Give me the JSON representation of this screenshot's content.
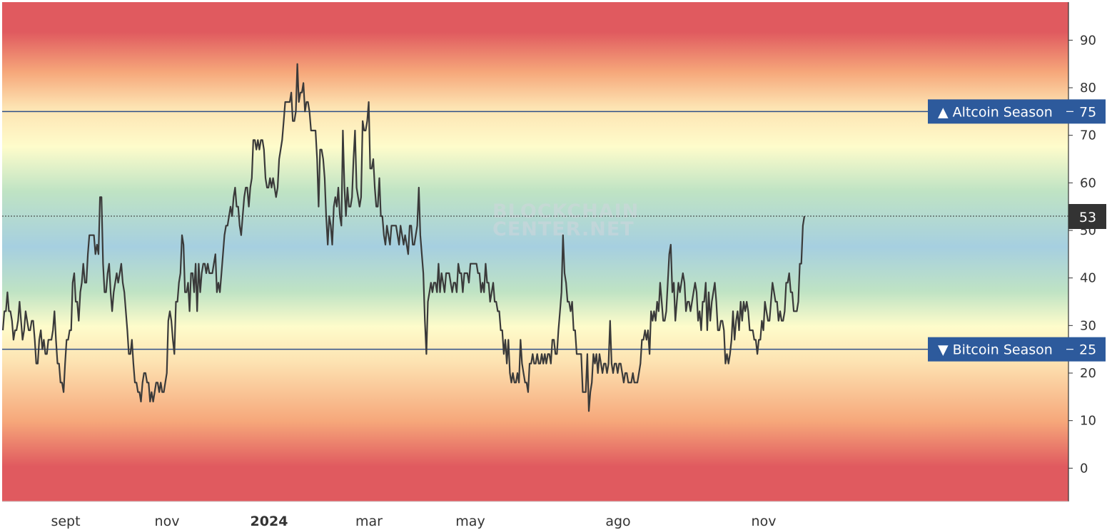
{
  "watermark": {
    "line1": "BLOCKCHAIN",
    "line2": "CENTER.NET"
  },
  "colors": {
    "line": "#3a3a3a",
    "threshold_line": "#2f4f88",
    "label_bg": "#2d5a9c",
    "current_bg": "#333333",
    "band_red": "#e05a5f",
    "band_orange": "#f6a77a",
    "band_peach": "#fde3b2",
    "band_yellow": "#fefccb",
    "band_green": "#bfe3c4",
    "band_blue": "#a6cfe0"
  },
  "chart_data": {
    "type": "line",
    "x_axis_labels": [
      "sept",
      "nov",
      "2024",
      "mar",
      "may",
      "ago",
      "nov"
    ],
    "y_ticks": [
      0,
      10,
      20,
      30,
      40,
      50,
      60,
      70,
      80,
      90
    ],
    "ylim": [
      -7,
      98
    ],
    "grid": false,
    "series": [
      {
        "values": [
          29,
          33,
          33,
          37,
          33,
          33,
          31,
          27,
          29,
          29,
          31,
          35,
          31,
          27,
          29,
          33,
          31,
          29,
          29,
          31,
          31,
          27,
          22,
          22,
          27,
          29,
          25,
          27,
          24,
          24,
          27,
          27,
          27,
          29,
          33,
          27,
          22,
          22,
          18,
          18,
          16,
          22,
          27,
          27,
          29,
          29,
          39,
          41,
          35,
          35,
          31,
          37,
          39,
          43,
          39,
          39,
          45,
          49,
          49,
          49,
          49,
          45,
          47,
          45,
          57,
          57,
          43,
          37,
          37,
          41,
          43,
          37,
          33,
          37,
          39,
          41,
          39,
          41,
          43,
          39,
          37,
          33,
          29,
          24,
          24,
          27,
          22,
          18,
          18,
          16,
          16,
          14,
          18,
          20,
          20,
          18,
          18,
          14,
          16,
          14,
          16,
          18,
          18,
          16,
          18,
          16,
          16,
          18,
          20,
          31,
          33,
          31,
          27,
          24,
          35,
          35,
          39,
          41,
          49,
          47,
          37,
          37,
          39,
          33,
          41,
          41,
          37,
          43,
          33,
          43,
          37,
          41,
          43,
          43,
          41,
          43,
          41,
          41,
          41,
          43,
          45,
          37,
          39,
          37,
          41,
          45,
          49,
          51,
          51,
          53,
          55,
          53,
          57,
          59,
          55,
          55,
          51,
          49,
          53,
          57,
          59,
          59,
          55,
          59,
          61,
          69,
          69,
          67,
          69,
          67,
          69,
          69,
          67,
          61,
          59,
          59,
          61,
          59,
          61,
          59,
          57,
          59,
          65,
          67,
          69,
          73,
          77,
          77,
          77,
          77,
          79,
          73,
          73,
          75,
          85,
          77,
          79,
          79,
          81,
          75,
          77,
          77,
          75,
          71,
          71,
          71,
          71,
          65,
          55,
          67,
          67,
          65,
          61,
          53,
          47,
          53,
          51,
          47,
          55,
          57,
          55,
          59,
          53,
          51,
          71,
          59,
          53,
          59,
          55,
          55,
          57,
          65,
          71,
          59,
          57,
          55,
          57,
          73,
          71,
          71,
          73,
          77,
          63,
          63,
          65,
          59,
          55,
          55,
          61,
          53,
          53,
          49,
          47,
          51,
          49,
          47,
          51,
          51,
          51,
          51,
          49,
          47,
          51,
          49,
          47,
          49,
          47,
          45,
          51,
          51,
          47,
          47,
          49,
          51,
          59,
          49,
          45,
          41,
          31,
          24,
          35,
          37,
          39,
          37,
          39,
          39,
          37,
          43,
          37,
          41,
          39,
          37,
          41,
          41,
          41,
          39,
          37,
          39,
          39,
          37,
          43,
          41,
          41,
          37,
          41,
          41,
          41,
          39,
          43,
          43,
          43,
          43,
          43,
          41,
          41,
          37,
          39,
          37,
          43,
          39,
          39,
          35,
          37,
          39,
          35,
          35,
          33,
          33,
          29,
          29,
          24,
          27,
          22,
          27,
          20,
          18,
          20,
          18,
          18,
          20,
          18,
          27,
          22,
          20,
          18,
          18,
          16,
          22,
          22,
          24,
          22,
          22,
          24,
          22,
          22,
          24,
          22,
          24,
          22,
          24,
          24,
          22,
          27,
          27,
          24,
          24,
          29,
          33,
          37,
          49,
          41,
          39,
          35,
          35,
          33,
          35,
          29,
          29,
          24,
          24,
          24,
          24,
          16,
          16,
          16,
          24,
          12,
          16,
          18,
          24,
          22,
          24,
          20,
          24,
          22,
          20,
          22,
          22,
          20,
          22,
          31,
          22,
          20,
          22,
          22,
          20,
          22,
          22,
          20,
          18,
          20,
          20,
          18,
          18,
          18,
          20,
          18,
          18,
          18,
          20,
          22,
          27,
          27,
          29,
          27,
          29,
          24,
          33,
          31,
          33,
          31,
          35,
          33,
          39,
          35,
          31,
          31,
          33,
          39,
          45,
          47,
          37,
          39,
          31,
          35,
          39,
          37,
          39,
          41,
          39,
          33,
          35,
          35,
          33,
          35,
          37,
          39,
          37,
          31,
          33,
          29,
          35,
          35,
          39,
          29,
          37,
          31,
          35,
          37,
          39,
          35,
          29,
          29,
          31,
          31,
          29,
          22,
          24,
          22,
          24,
          27,
          33,
          27,
          31,
          33,
          29,
          35,
          31,
          35,
          33,
          35,
          33,
          29,
          29,
          29,
          27,
          27,
          24,
          27,
          27,
          31,
          29,
          35,
          33,
          31,
          31,
          35,
          39,
          37,
          35,
          35,
          31,
          33,
          31,
          31,
          33,
          39,
          39,
          41,
          37,
          37,
          33,
          33,
          33,
          35,
          43,
          43,
          51,
          53
        ]
      }
    ],
    "thresholds": [
      {
        "label": "▲ Altcoin Season",
        "value": 75
      },
      {
        "label": "▼ Bitcoin Season",
        "value": 25
      }
    ],
    "current": {
      "value": 53,
      "label": "53"
    }
  }
}
